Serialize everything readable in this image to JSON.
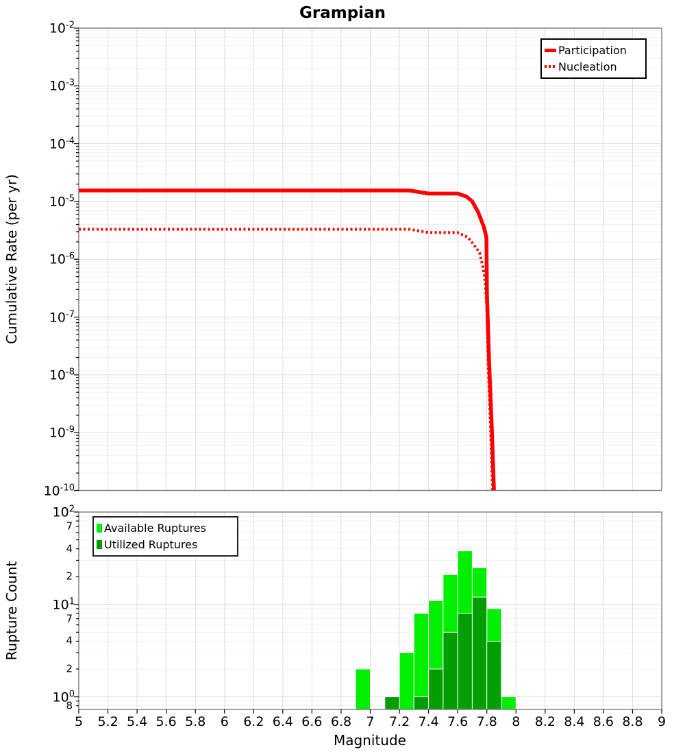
{
  "title": "Grampian",
  "xlabel": "Magnitude",
  "colors": {
    "line_red": "#FF0000",
    "available_green": "#00EE00",
    "utilized_green": "#009E00",
    "grid_major": "#DEDEDE",
    "grid_minor": "#F1F1F1",
    "panel_border": "#808080",
    "tick": "#000000"
  },
  "legends": {
    "rate": {
      "items": [
        {
          "label": "Participation",
          "style": "solid"
        },
        {
          "label": "Nucleation",
          "style": "dotted"
        }
      ]
    },
    "count": {
      "items": [
        {
          "label": "Available Ruptures",
          "color": "#00EE00"
        },
        {
          "label": "Utilized Ruptures",
          "color": "#009E00"
        }
      ]
    }
  },
  "x_axis": {
    "min": 5,
    "max": 9,
    "tick_values": [
      5,
      5.2,
      5.4,
      5.6,
      5.8,
      6,
      6.2,
      6.4,
      6.6,
      6.8,
      7,
      7.2,
      7.4,
      7.6,
      7.8,
      8,
      8.2,
      8.4,
      8.6,
      8.8,
      9
    ],
    "tick_labels": [
      "5",
      "5.2",
      "5.4",
      "5.6",
      "5.8",
      "6",
      "6.2",
      "6.4",
      "6.6",
      "6.8",
      "7",
      "7.2",
      "7.4",
      "7.6",
      "7.8",
      "8",
      "8.2",
      "8.4",
      "8.6",
      "8.8",
      "9"
    ]
  },
  "top_y_axis": {
    "label": "Cumulative Rate (per yr)",
    "base": "10",
    "exponents": [
      -2,
      -3,
      -4,
      -5,
      -6,
      -7,
      -8,
      -9,
      -10
    ]
  },
  "bottom_y_axis": {
    "label": "Rupture Count",
    "base": "10",
    "major_exponents": [
      2,
      1,
      0
    ],
    "minor_labels": [
      {
        "text": "7",
        "value": 70
      },
      {
        "text": "4",
        "value": 40
      },
      {
        "text": "2",
        "value": 20
      },
      {
        "text": "7",
        "value": 7
      },
      {
        "text": "4",
        "value": 4
      },
      {
        "text": "2",
        "value": 2
      },
      {
        "text": "8",
        "value": 0.8
      }
    ],
    "min_value": 0.73,
    "max_value": 100
  },
  "chart_data": [
    {
      "type": "line",
      "title": "Grampian",
      "xlabel": "Magnitude",
      "ylabel": "Cumulative Rate (per yr)",
      "x_range": [
        5,
        9
      ],
      "y_range_log10": [
        -10,
        -2
      ],
      "grid": true,
      "legend_position": "top-right",
      "series": [
        {
          "name": "Participation",
          "style": "solid",
          "color": "#FF0000",
          "points": [
            [
              5.0,
              1.55e-05
            ],
            [
              7.27,
              1.55e-05
            ],
            [
              7.4,
              1.37e-05
            ],
            [
              7.6,
              1.37e-05
            ],
            [
              7.66,
              1.22e-05
            ],
            [
              7.7,
              1e-05
            ],
            [
              7.74,
              6.6e-06
            ],
            [
              7.78,
              3.6e-06
            ],
            [
              7.797,
              2.4e-06
            ],
            [
              7.801,
              2.4e-07
            ],
            [
              7.816,
              1.6e-08
            ],
            [
              7.835,
              1.1e-09
            ],
            [
              7.849,
              1e-10
            ]
          ]
        },
        {
          "name": "Nucleation",
          "style": "dotted",
          "color": "#FF0000",
          "points": [
            [
              5.0,
              3.3e-06
            ],
            [
              7.27,
              3.3e-06
            ],
            [
              7.4,
              2.9e-06
            ],
            [
              7.6,
              2.9e-06
            ],
            [
              7.67,
              2.4e-06
            ],
            [
              7.71,
              1.8e-06
            ],
            [
              7.75,
              1.3e-06
            ],
            [
              7.775,
              7e-07
            ],
            [
              7.79,
              3.9e-07
            ],
            [
              7.8,
              1.4e-07
            ],
            [
              7.809,
              1.6e-08
            ],
            [
              7.826,
              1.1e-09
            ],
            [
              7.84,
              1e-10
            ]
          ]
        }
      ]
    },
    {
      "type": "bar",
      "xlabel": "Magnitude",
      "ylabel": "Rupture Count",
      "x_range": [
        5,
        9
      ],
      "y_range": [
        0.73,
        100
      ],
      "y_scale": "log",
      "bin_width": 0.1,
      "bin_starts": [
        6.9,
        7.1,
        7.2,
        7.3,
        7.4,
        7.5,
        7.6,
        7.7,
        7.8,
        7.9
      ],
      "series": [
        {
          "name": "Available Ruptures",
          "color": "#00EE00",
          "values": [
            2,
            1,
            3,
            8,
            11,
            21,
            38,
            25,
            9,
            1
          ]
        },
        {
          "name": "Utilized Ruptures",
          "color": "#009E00",
          "values": [
            0,
            1,
            0,
            1,
            2,
            5,
            8,
            12,
            4,
            0
          ]
        }
      ]
    }
  ]
}
